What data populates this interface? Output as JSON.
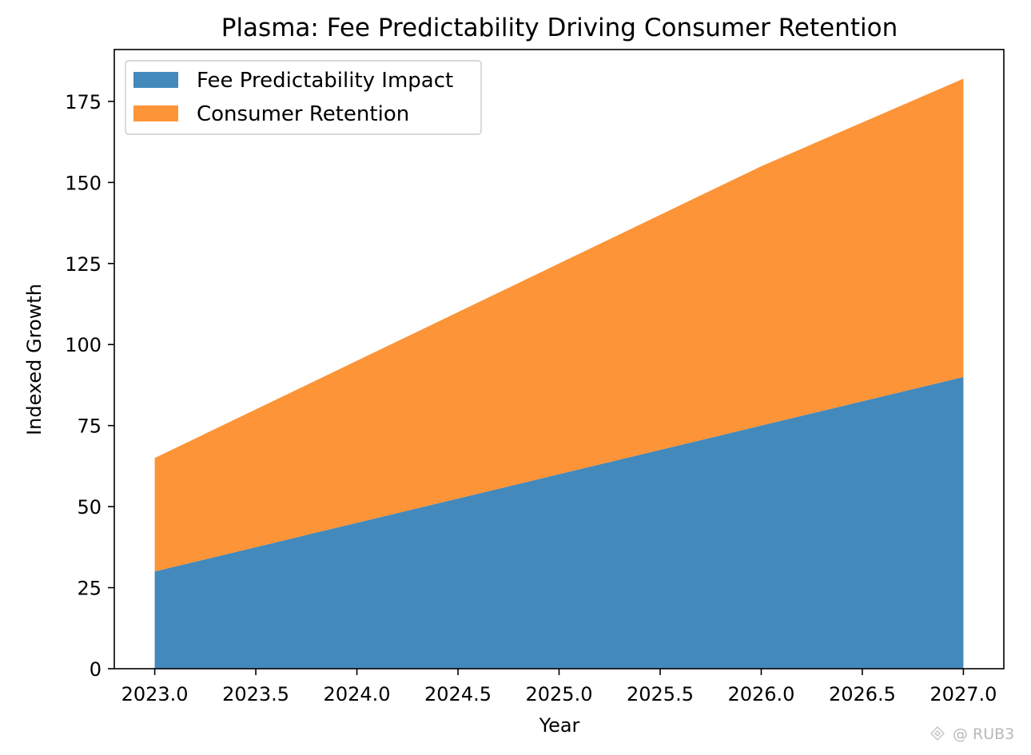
{
  "chart_data": {
    "type": "area",
    "stacked": true,
    "title": "Plasma: Fee Predictability Driving Consumer Retention",
    "xlabel": "Year",
    "ylabel": "Indexed Growth",
    "x": [
      2023,
      2024,
      2025,
      2026,
      2027
    ],
    "xlim": [
      2022.8,
      2027.2
    ],
    "ylim": [
      0,
      191
    ],
    "xticks": [
      "2023.0",
      "2023.5",
      "2024.0",
      "2024.5",
      "2025.0",
      "2025.5",
      "2026.0",
      "2026.5",
      "2027.0"
    ],
    "yticks": [
      "0",
      "25",
      "50",
      "75",
      "100",
      "125",
      "150",
      "175"
    ],
    "series": [
      {
        "name": "Fee Predictability Impact",
        "values": [
          30,
          45,
          60,
          75,
          90
        ],
        "color": "#4389bc"
      },
      {
        "name": "Consumer Retention",
        "values": [
          35,
          50,
          65,
          80,
          92
        ],
        "color": "#fd9437"
      }
    ],
    "grid": false,
    "legend_position": "upper-left"
  },
  "watermark": {
    "text": "@ RUB3",
    "icon": "binance-square-icon"
  }
}
